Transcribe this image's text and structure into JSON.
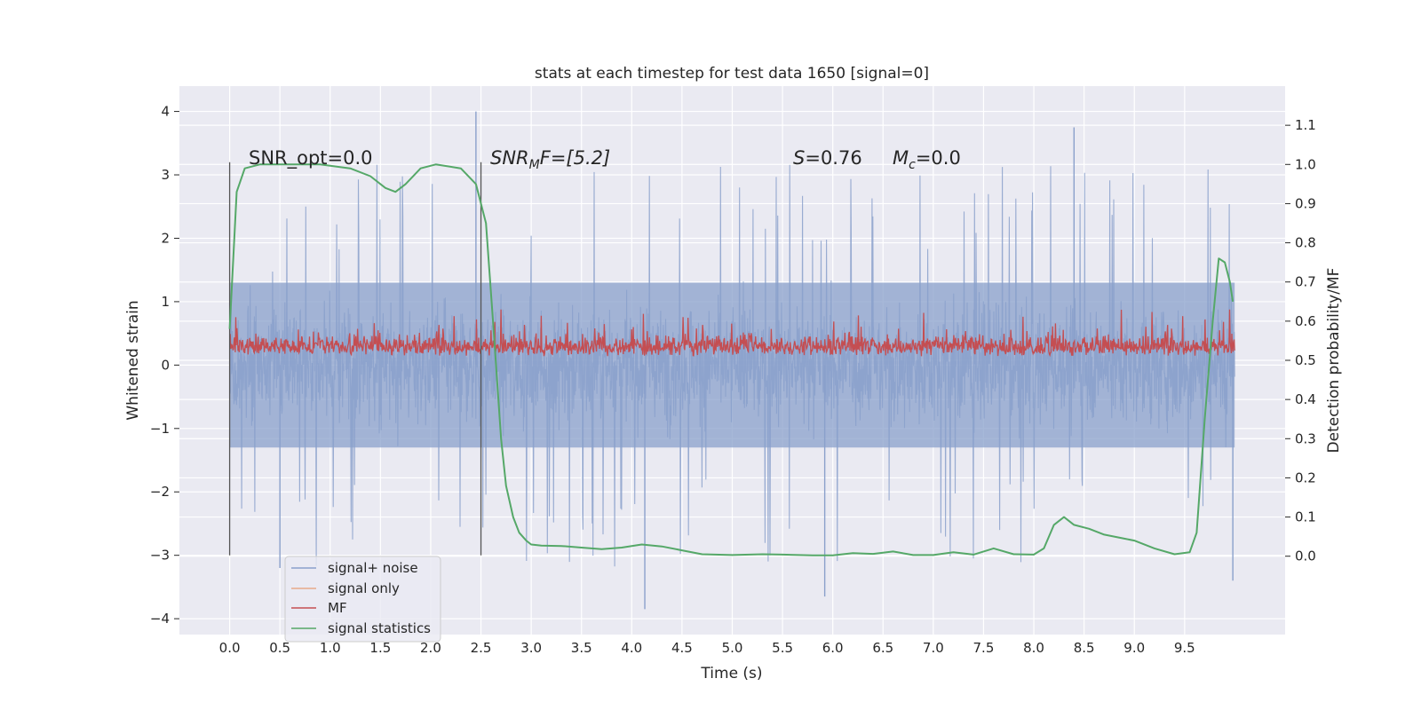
{
  "chart_data": {
    "type": "line",
    "title": "stats at each timestep for test data 1650 [signal=0]",
    "xlabel": "Time (s)",
    "ylabel_left": "Whitened strain",
    "ylabel_right": "Detection probability/MF",
    "xlim": [
      -0.5,
      10.5
    ],
    "ylim_left": [
      -4.25,
      4.4
    ],
    "ylim_right": [
      -0.2,
      1.2
    ],
    "xticks": [
      "0.0",
      "0.5",
      "1.0",
      "1.5",
      "2.0",
      "2.5",
      "3.0",
      "3.5",
      "4.0",
      "4.5",
      "5.0",
      "5.5",
      "6.0",
      "6.5",
      "7.0",
      "7.5",
      "8.0",
      "8.5",
      "9.0",
      "9.5"
    ],
    "yticks_left": [
      "4",
      "3",
      "2",
      "1",
      "0",
      "−1",
      "−2",
      "−3",
      "−4"
    ],
    "yticks_right": [
      "1.1",
      "1.0",
      "0.9",
      "0.8",
      "0.7",
      "0.6",
      "0.5",
      "0.4",
      "0.3",
      "0.2",
      "0.1",
      "0.0"
    ],
    "grid": true,
    "legend_position": "lower-left",
    "annotations": {
      "snr_opt": "SNR_opt=0.0",
      "snr_mf_base": "SNR",
      "snr_mf_sub": "M",
      "snr_mf_rest": "F=[5.2]",
      "s_var": "S",
      "s_rest": "=0.76",
      "mc_var": "M",
      "mc_sub": "c",
      "mc_rest": "=0.0"
    },
    "vertical_markers": [
      {
        "x": 0.0,
        "y": [
          -3.0,
          3.2
        ]
      },
      {
        "x": 2.5,
        "y": [
          -3.0,
          3.2
        ]
      }
    ],
    "series": [
      {
        "name": "signal+ noise",
        "color": "#8aa0cb",
        "axis": "left",
        "x_range": [
          0.0,
          9.998
        ],
        "envelope_bulk": 1.3,
        "envelope_peak": 4.0
      },
      {
        "name": "signal only",
        "color": "#e8a98a",
        "axis": "left",
        "x": [],
        "y": []
      },
      {
        "name": "MF",
        "color": "#c44e52",
        "axis": "right",
        "x_range": [
          0.0,
          9.998
        ],
        "baseline": 0.51,
        "typical_max": 0.58,
        "peak_max": 0.63
      },
      {
        "name": "signal statistics",
        "color": "#55a868",
        "axis": "right",
        "x": [
          0.0,
          0.07,
          0.15,
          0.3,
          0.6,
          0.9,
          1.2,
          1.4,
          1.55,
          1.65,
          1.75,
          1.9,
          2.05,
          2.3,
          2.45,
          2.55,
          2.62,
          2.7,
          2.75,
          2.82,
          2.88,
          2.95,
          3.0,
          3.1,
          3.3,
          3.5,
          3.7,
          3.9,
          4.1,
          4.3,
          4.5,
          4.7,
          5.0,
          5.3,
          5.5,
          5.8,
          6.0,
          6.2,
          6.4,
          6.6,
          6.8,
          7.0,
          7.2,
          7.4,
          7.6,
          7.8,
          8.0,
          8.1,
          8.2,
          8.3,
          8.4,
          8.55,
          8.7,
          8.9,
          9.0,
          9.2,
          9.4,
          9.55,
          9.62,
          9.7,
          9.78,
          9.84,
          9.9,
          9.95,
          9.98
        ],
        "y": [
          0.58,
          0.93,
          0.99,
          1.0,
          1.0,
          1.0,
          0.99,
          0.97,
          0.94,
          0.93,
          0.95,
          0.99,
          1.0,
          0.99,
          0.95,
          0.85,
          0.6,
          0.3,
          0.18,
          0.1,
          0.06,
          0.04,
          0.03,
          0.027,
          0.026,
          0.022,
          0.018,
          0.022,
          0.03,
          0.025,
          0.015,
          0.005,
          0.003,
          0.005,
          0.004,
          0.002,
          0.002,
          0.008,
          0.006,
          0.012,
          0.003,
          0.003,
          0.01,
          0.004,
          0.02,
          0.005,
          0.004,
          0.02,
          0.08,
          0.1,
          0.08,
          0.07,
          0.055,
          0.045,
          0.04,
          0.02,
          0.005,
          0.01,
          0.06,
          0.35,
          0.6,
          0.76,
          0.75,
          0.7,
          0.65
        ]
      }
    ]
  }
}
